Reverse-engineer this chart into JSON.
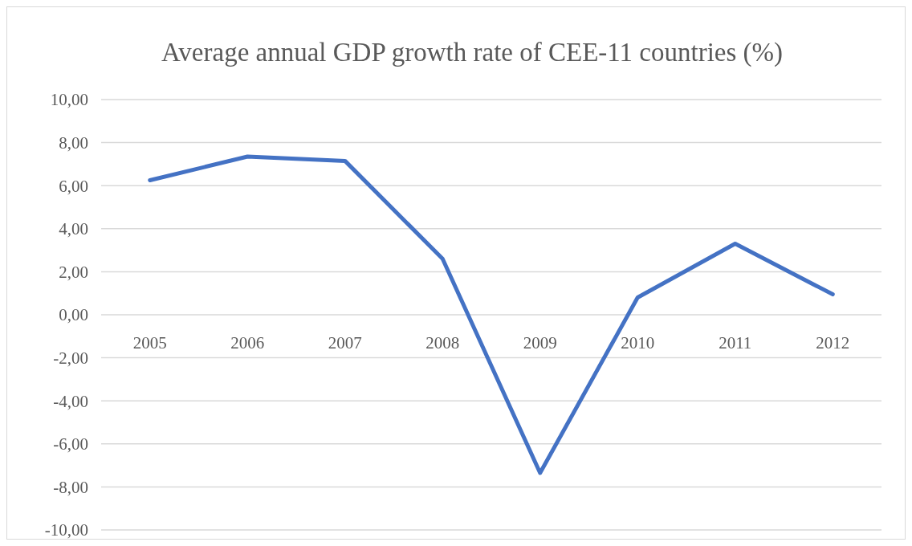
{
  "chart_data": {
    "type": "line",
    "title": "Average annual GDP growth rate of CEE-11 countries (%)",
    "categories": [
      "2005",
      "2006",
      "2007",
      "2008",
      "2009",
      "2010",
      "2011",
      "2012"
    ],
    "series": [
      {
        "color": "#4472c4",
        "values": [
          6.25,
          7.35,
          7.15,
          2.6,
          -7.35,
          0.8,
          3.3,
          0.95
        ]
      }
    ],
    "ylim": [
      -10,
      10
    ],
    "yticks": [
      {
        "value": -10,
        "label": "-10,00"
      },
      {
        "value": -8,
        "label": "-8,00"
      },
      {
        "value": -6,
        "label": "-6,00"
      },
      {
        "value": -4,
        "label": "-4,00"
      },
      {
        "value": -2,
        "label": "-2,00"
      },
      {
        "value": 0,
        "label": "0,00"
      },
      {
        "value": 2,
        "label": "2,00"
      },
      {
        "value": 4,
        "label": "4,00"
      },
      {
        "value": 6,
        "label": "6,00"
      },
      {
        "value": 8,
        "label": "8,00"
      },
      {
        "value": 10,
        "label": "10,00"
      }
    ],
    "grid": "y",
    "marker": "none",
    "line_style": "solid"
  }
}
